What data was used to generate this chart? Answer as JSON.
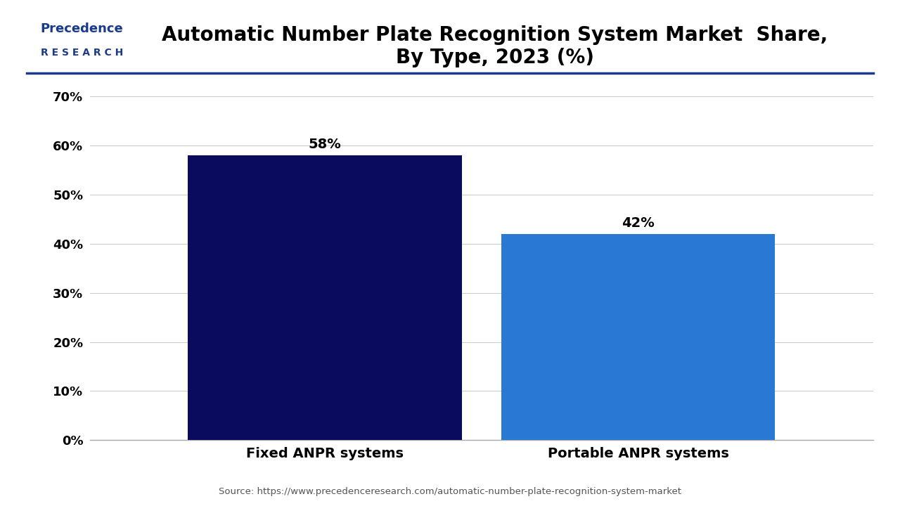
{
  "title": "Automatic Number Plate Recognition System Market  Share,\nBy Type, 2023 (%)",
  "categories": [
    "Fixed ANPR systems",
    "Portable ANPR systems"
  ],
  "values": [
    58,
    42
  ],
  "bar_colors": [
    "#0a0a5e",
    "#2979d4"
  ],
  "value_labels": [
    "58%",
    "42%"
  ],
  "ylim": [
    0,
    70
  ],
  "yticks": [
    0,
    10,
    20,
    30,
    40,
    50,
    60,
    70
  ],
  "ytick_labels": [
    "0%",
    "10%",
    "20%",
    "30%",
    "40%",
    "50%",
    "60%",
    "70%"
  ],
  "background_color": "#ffffff",
  "grid_color": "#cccccc",
  "title_fontsize": 20,
  "tick_fontsize": 13,
  "label_fontsize": 14,
  "value_fontsize": 14,
  "source_text": "Source: https://www.precedenceresearch.com/automatic-number-plate-recognition-system-market",
  "bar_width": 0.35,
  "logo_line1": "Precedence",
  "logo_line2": "R E S E A R C H",
  "logo_color": "#1a3a8a",
  "separator_color": "#1a3a8a"
}
